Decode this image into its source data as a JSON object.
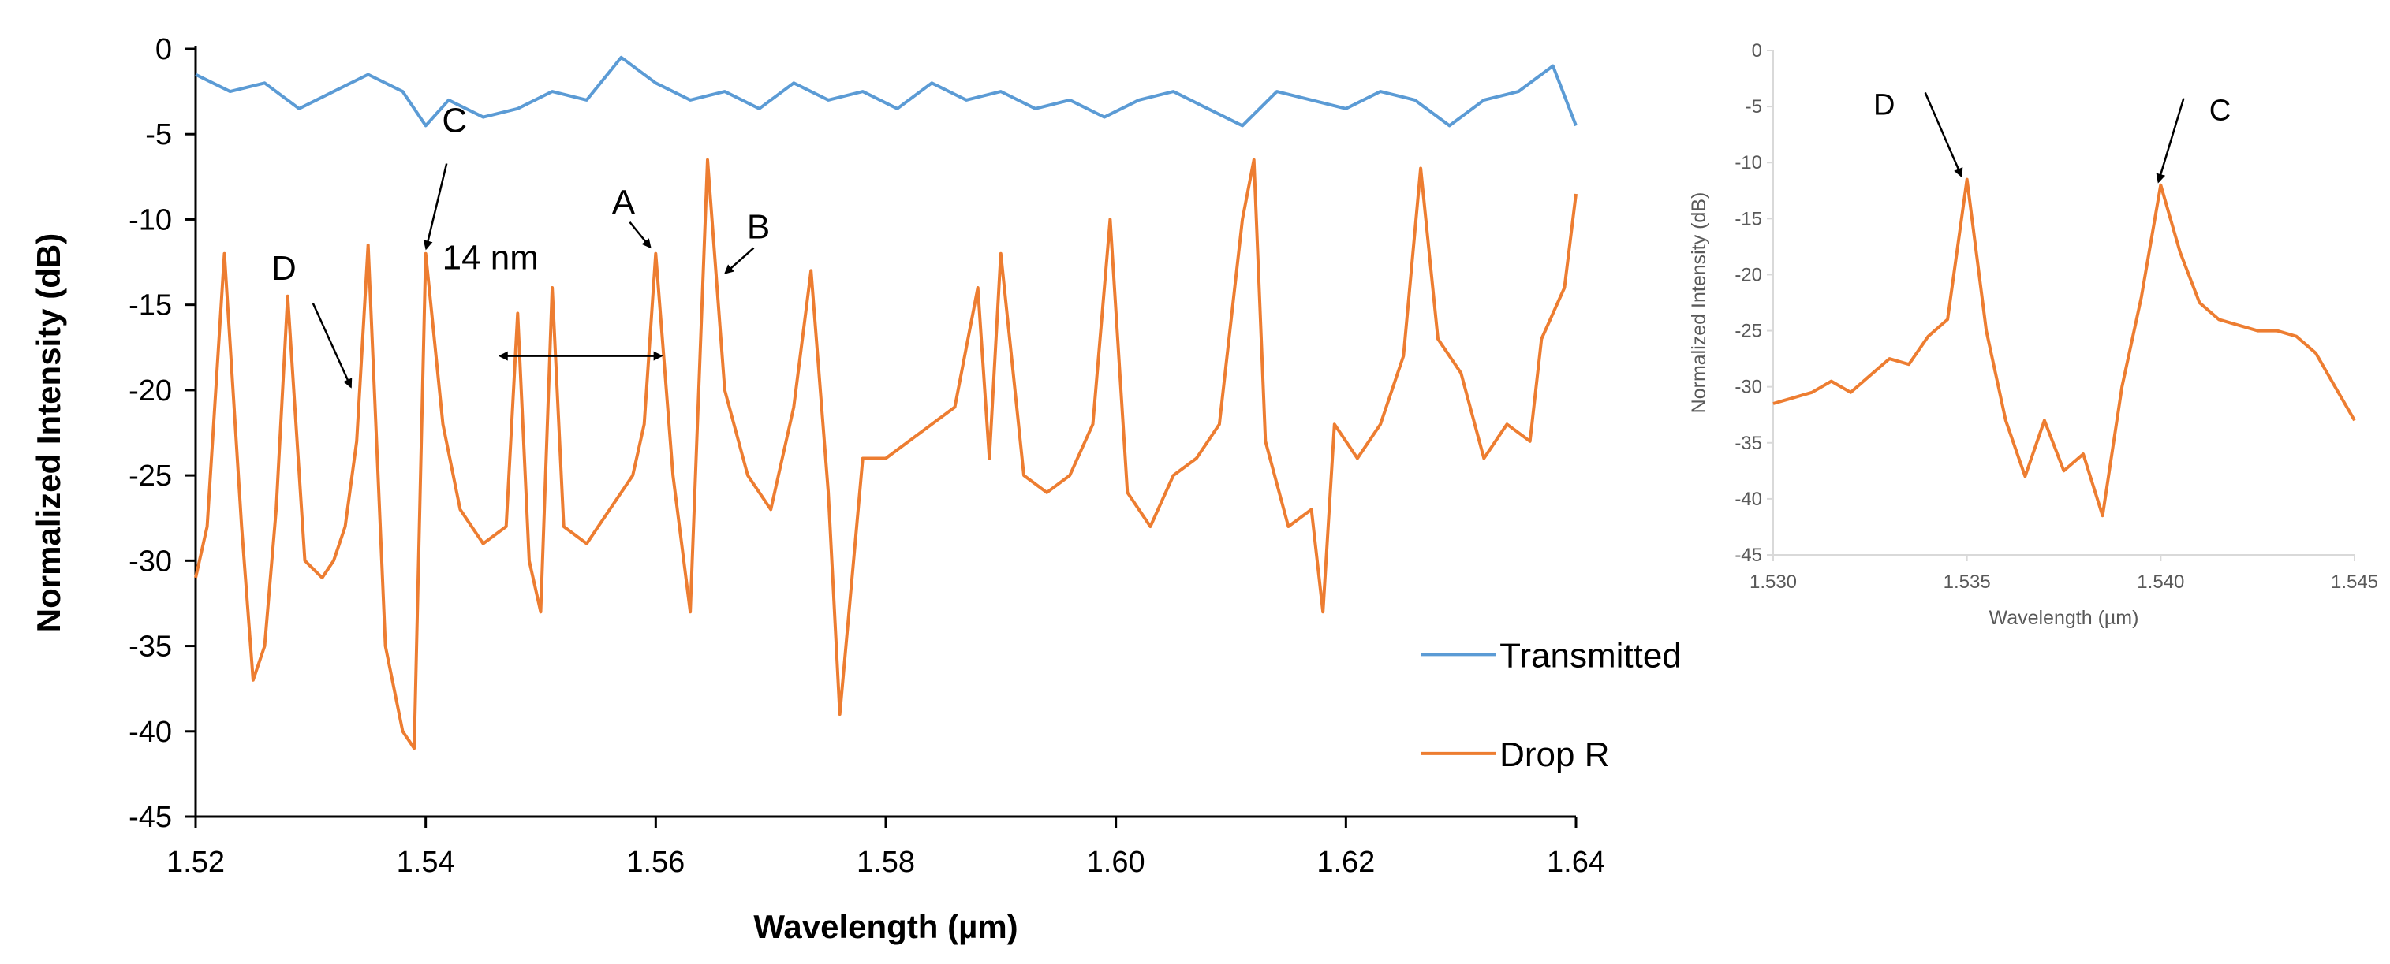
{
  "colors": {
    "transmitted": "#5B9BD5",
    "drop": "#ED7D31",
    "inset_axis": "#D9D9D9"
  },
  "chart_data": [
    {
      "type": "line",
      "xlabel": "Wavelength (µm)",
      "ylabel": "Normalized Intensity (dB)",
      "xlim": [
        1.52,
        1.64
      ],
      "ylim": [
        -45,
        0
      ],
      "xticks": [
        1.52,
        1.54,
        1.56,
        1.58,
        1.6,
        1.62,
        1.64
      ],
      "xtick_labels": [
        "1.52",
        "1.54",
        "1.56",
        "1.58",
        "1.60",
        "1.62",
        "1.64"
      ],
      "yticks": [
        0,
        -5,
        -10,
        -15,
        -20,
        -25,
        -30,
        -35,
        -40,
        -45
      ],
      "ytick_labels": [
        "0",
        "-5",
        "-10",
        "-15",
        "-20",
        "-25",
        "-30",
        "-35",
        "-40",
        "-45"
      ],
      "legend_position": "bottom-right",
      "series": [
        {
          "name": "Transmitted",
          "x": [
            1.52,
            1.523,
            1.526,
            1.529,
            1.532,
            1.535,
            1.538,
            1.54,
            1.542,
            1.545,
            1.548,
            1.551,
            1.554,
            1.557,
            1.56,
            1.563,
            1.566,
            1.569,
            1.572,
            1.575,
            1.578,
            1.581,
            1.584,
            1.587,
            1.59,
            1.593,
            1.596,
            1.599,
            1.602,
            1.605,
            1.608,
            1.611,
            1.614,
            1.617,
            1.62,
            1.623,
            1.626,
            1.629,
            1.632,
            1.635,
            1.638,
            1.64
          ],
          "y": [
            -1.5,
            -2.5,
            -2.0,
            -3.5,
            -2.5,
            -1.5,
            -2.5,
            -4.5,
            -3.0,
            -4.0,
            -3.5,
            -2.5,
            -3.0,
            -0.5,
            -2.0,
            -3.0,
            -2.5,
            -3.5,
            -2.0,
            -3.0,
            -2.5,
            -3.5,
            -2.0,
            -3.0,
            -2.5,
            -3.5,
            -3.0,
            -4.0,
            -3.0,
            -2.5,
            -3.5,
            -4.5,
            -2.5,
            -3.0,
            -3.5,
            -2.5,
            -3.0,
            -4.5,
            -3.0,
            -2.5,
            -1.0,
            -4.5
          ]
        },
        {
          "name": "Drop R",
          "x": [
            1.52,
            1.521,
            1.5225,
            1.524,
            1.525,
            1.526,
            1.527,
            1.528,
            1.5295,
            1.531,
            1.532,
            1.533,
            1.534,
            1.535,
            1.5365,
            1.538,
            1.539,
            1.54,
            1.5415,
            1.543,
            1.545,
            1.547,
            1.548,
            1.549,
            1.55,
            1.551,
            1.552,
            1.554,
            1.556,
            1.558,
            1.559,
            1.56,
            1.5615,
            1.563,
            1.5645,
            1.566,
            1.568,
            1.57,
            1.572,
            1.5735,
            1.575,
            1.576,
            1.578,
            1.58,
            1.582,
            1.584,
            1.586,
            1.588,
            1.589,
            1.59,
            1.592,
            1.594,
            1.596,
            1.598,
            1.5995,
            1.601,
            1.603,
            1.605,
            1.607,
            1.609,
            1.611,
            1.612,
            1.613,
            1.615,
            1.617,
            1.618,
            1.619,
            1.621,
            1.623,
            1.625,
            1.6265,
            1.628,
            1.63,
            1.632,
            1.634,
            1.636,
            1.637,
            1.639,
            1.64
          ],
          "y": [
            -31,
            -28,
            -12,
            -28,
            -37,
            -35,
            -27,
            -14.5,
            -30,
            -31,
            -30,
            -28,
            -23,
            -11.5,
            -35,
            -40,
            -41,
            -12,
            -22,
            -27,
            -29,
            -28,
            -15.5,
            -30,
            -33,
            -14,
            -28,
            -29,
            -27,
            -25,
            -22,
            -12,
            -25,
            -33,
            -6.5,
            -20,
            -25,
            -27,
            -21,
            -13,
            -26,
            -39,
            -24,
            -24,
            -23,
            -22,
            -21,
            -14,
            -24,
            -12,
            -25,
            -26,
            -25,
            -22,
            -10,
            -26,
            -28,
            -25,
            -24,
            -22,
            -10,
            -6.5,
            -23,
            -28,
            -27,
            -33,
            -22,
            -24,
            -22,
            -18,
            -7,
            -17,
            -19,
            -24,
            -22,
            -23,
            -17,
            -14,
            -8.5
          ]
        }
      ],
      "annotations": [
        {
          "text": "A",
          "x": 1.5598,
          "y": -12.0
        },
        {
          "text": "B",
          "x": 1.5655,
          "y": -12.5
        },
        {
          "text": "C",
          "x": 1.5399,
          "y": -11.8
        },
        {
          "text": "D",
          "x": 1.5335,
          "y": -20.0
        },
        {
          "text": "14 nm",
          "from": 1.547,
          "to": 1.5605,
          "y": -18
        }
      ]
    },
    {
      "type": "line",
      "xlabel": "Wavelength (µm)",
      "ylabel": "Normalized Intensity (dB)",
      "xlim": [
        1.53,
        1.545
      ],
      "ylim": [
        -45,
        0
      ],
      "xticks": [
        1.53,
        1.535,
        1.54,
        1.545
      ],
      "xtick_labels": [
        "1.530",
        "1.535",
        "1.540",
        "1.545"
      ],
      "yticks": [
        0,
        -5,
        -10,
        -15,
        -20,
        -25,
        -30,
        -35,
        -40,
        -45
      ],
      "ytick_labels": [
        "0",
        "-5",
        "-10",
        "-15",
        "-20",
        "-25",
        "-30",
        "-35",
        "-40",
        "-45"
      ],
      "series": [
        {
          "name": "Drop R",
          "x": [
            1.53,
            1.5305,
            1.531,
            1.5315,
            1.532,
            1.5325,
            1.533,
            1.5335,
            1.534,
            1.5345,
            1.535,
            1.5355,
            1.536,
            1.5365,
            1.537,
            1.5375,
            1.538,
            1.5385,
            1.539,
            1.5395,
            1.54,
            1.5405,
            1.541,
            1.5415,
            1.542,
            1.5425,
            1.543,
            1.5435,
            1.544,
            1.5445,
            1.545
          ],
          "y": [
            -31.5,
            -31.0,
            -30.5,
            -29.5,
            -30.5,
            -29.0,
            -27.5,
            -28.0,
            -25.5,
            -24.0,
            -11.5,
            -25.0,
            -33.0,
            -38.0,
            -33.0,
            -37.5,
            -36.0,
            -41.5,
            -30.0,
            -22.0,
            -12.0,
            -18.0,
            -22.5,
            -24.0,
            -24.5,
            -25.0,
            -25.0,
            -25.5,
            -27.0,
            -30.0,
            -33.0
          ]
        }
      ],
      "annotations": [
        {
          "text": "D",
          "x": 1.5349,
          "y": -11.5
        },
        {
          "text": "C",
          "x": 1.5399,
          "y": -12.0
        }
      ]
    }
  ]
}
